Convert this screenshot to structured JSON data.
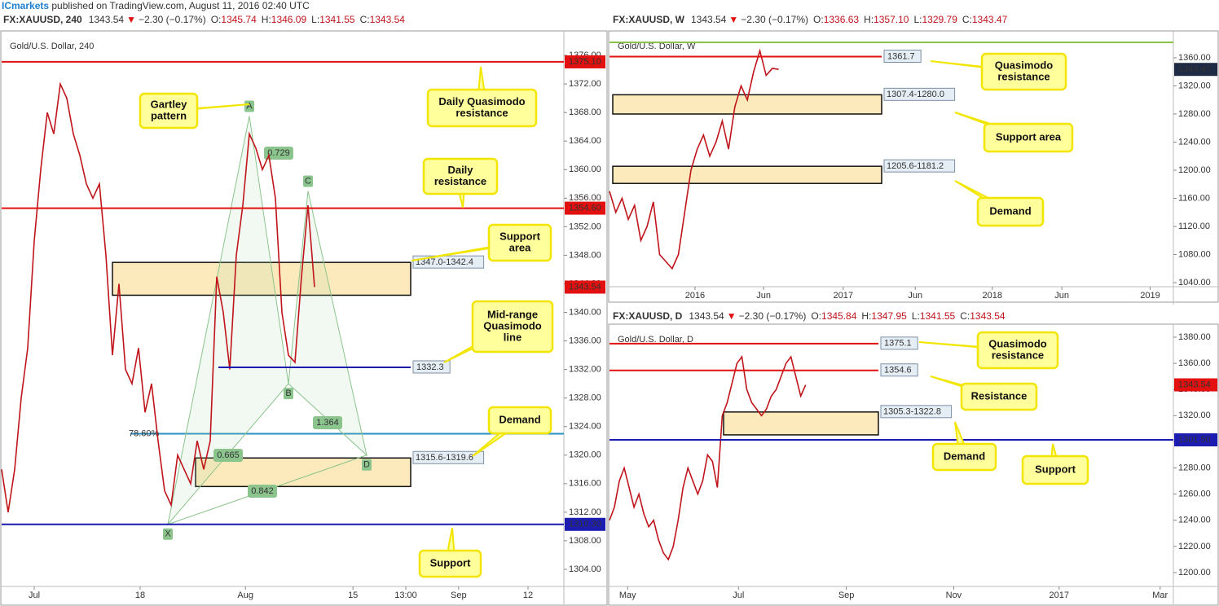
{
  "header": {
    "brand": "ICmarkets",
    "text": " published on TradingView.com, August 11, 2016 02:40 UTC"
  },
  "chart_data": [
    {
      "type": "line",
      "symbol": "FX:XAUUSD, 240",
      "last": "1343.54",
      "arrow": "▼",
      "change": "−2.30 (−0.17%)",
      "ohlc": [
        {
          "label": "O:",
          "value": "1345.74"
        },
        {
          "label": "H:",
          "value": "1346.09"
        },
        {
          "label": "L:",
          "value": "1341.55"
        },
        {
          "label": "C:",
          "value": "1343.54"
        }
      ],
      "title": "Gold/U.S. Dollar, 240",
      "color": "#c0141b",
      "values": [
        1318,
        1312,
        1318,
        1328,
        1335,
        1350,
        1360,
        1368,
        1365,
        1372,
        1370,
        1365,
        1362,
        1358,
        1356,
        1358,
        1348,
        1334,
        1344,
        1332,
        1330,
        1335,
        1326,
        1330,
        1322,
        1315,
        1313,
        1320,
        1318,
        1316,
        1322,
        1318,
        1322,
        1345,
        1340,
        1332,
        1348,
        1355,
        1365,
        1363,
        1360,
        1362,
        1356,
        1340,
        1334,
        1333,
        1345,
        1355,
        1343.54
      ],
      "xlim": [
        0,
        86.25
      ],
      "xticks": [
        {
          "value": 5,
          "label": "Jul"
        },
        {
          "value": 21.25,
          "label": "18"
        },
        {
          "value": 37.4,
          "label": "Aug"
        },
        {
          "value": 53.9,
          "label": "15"
        },
        {
          "value": 62,
          "label": "13:00"
        },
        {
          "value": 70.1,
          "label": "Sep"
        },
        {
          "value": 80.75,
          "label": "12"
        }
      ],
      "ylim": [
        1301.6,
        1379.2
      ],
      "yticks": [
        {
          "value": 1304,
          "label": "1304.00"
        },
        {
          "value": 1308,
          "label": "1308.00"
        },
        {
          "value": 1312,
          "label": "1312.00"
        },
        {
          "value": 1316,
          "label": "1316.00"
        },
        {
          "value": 1320,
          "label": "1320.00"
        },
        {
          "value": 1324,
          "label": "1324.00"
        },
        {
          "value": 1328,
          "label": "1328.00"
        },
        {
          "value": 1332,
          "label": "1332.00"
        },
        {
          "value": 1336,
          "label": "1336.00"
        },
        {
          "value": 1340,
          "label": "1340.00"
        },
        {
          "value": 1344,
          "label": "1344.00"
        },
        {
          "value": 1348,
          "label": "1348.00"
        },
        {
          "value": 1352,
          "label": "1352.00"
        },
        {
          "value": 1356,
          "label": "1356.00"
        },
        {
          "value": 1360,
          "label": "1360.00"
        },
        {
          "value": 1364,
          "label": "1364.00"
        },
        {
          "value": 1368,
          "label": "1368.00"
        },
        {
          "value": 1372,
          "label": "1372.00"
        },
        {
          "value": 1376,
          "label": "1376.00"
        }
      ],
      "levels": [
        {
          "value": 1375.1,
          "label": "1375.10",
          "color": "#e31010"
        },
        {
          "value": 1354.6,
          "label": "1354.60",
          "color": "#e31010"
        },
        {
          "value": 1332.3,
          "label": "1332.3",
          "color": "#1c1cb0"
        },
        {
          "value": 1310.3,
          "label": "1310.30",
          "color": "#1c1cb0"
        }
      ],
      "fib": {
        "value": 1323,
        "label": "78.60%",
        "color": "#2a8fc0"
      },
      "zones": [
        {
          "low": 1342.4,
          "high": 1347.0,
          "label": "1347.0-1342.4"
        },
        {
          "low": 1315.6,
          "high": 1319.6,
          "label": "1315.6-1319.6"
        }
      ],
      "price_label": {
        "value": 1343.54,
        "label": "1343.54",
        "color": "#e31010"
      },
      "pattern": [
        {
          "label": "X",
          "x": 25.5,
          "y": 1310.3
        },
        {
          "label": "A",
          "x": 38,
          "y": 1367.5
        },
        {
          "label": "B",
          "x": 44,
          "y": 1330
        },
        {
          "label": "C",
          "x": 47,
          "y": 1357
        },
        {
          "label": "D",
          "x": 56,
          "y": 1320
        }
      ],
      "ratios": [
        0.729,
        1.364,
        0.665,
        0.842
      ],
      "annotations": [
        {
          "lines": [
            "Gartley",
            "pattern"
          ]
        },
        {
          "lines": [
            "Daily Quasimodo",
            "resistance"
          ]
        },
        {
          "lines": [
            "Daily",
            "resistance"
          ]
        },
        {
          "lines": [
            "Support",
            "area"
          ]
        },
        {
          "lines": [
            "Mid-range",
            "Quasimodo",
            "line"
          ]
        },
        {
          "lines": [
            "Demand"
          ]
        },
        {
          "lines": [
            "Support"
          ]
        }
      ]
    },
    {
      "type": "line",
      "symbol": "FX:XAUUSD, W",
      "last": "1343.54",
      "arrow": "▼",
      "change": "−2.30 (−0.17%)",
      "ohlc": [
        {
          "label": "O:",
          "value": "1336.63"
        },
        {
          "label": "H:",
          "value": "1357.10"
        },
        {
          "label": "L:",
          "value": "1329.79"
        },
        {
          "label": "C:",
          "value": "1343.47"
        }
      ],
      "title": "Gold/U.S. Dollar, W",
      "color": "#c0141b",
      "values": [
        1170,
        1140,
        1160,
        1130,
        1150,
        1100,
        1120,
        1155,
        1080,
        1070,
        1060,
        1080,
        1140,
        1200,
        1230,
        1250,
        1220,
        1240,
        1270,
        1230,
        1290,
        1320,
        1300,
        1340,
        1370,
        1335,
        1345,
        1343.47
      ],
      "xlim": [
        0,
        90
      ],
      "xticks": [
        {
          "value": 13.65,
          "label": "2016"
        },
        {
          "value": 24.6,
          "label": "Jun"
        },
        {
          "value": 37.3,
          "label": "2017"
        },
        {
          "value": 48.8,
          "label": "Jun"
        },
        {
          "value": 61.1,
          "label": "2018"
        },
        {
          "value": 72.2,
          "label": "Jun"
        },
        {
          "value": 86.3,
          "label": "2019"
        }
      ],
      "ylim": [
        1034.2,
        1395.9
      ],
      "yticks": [
        {
          "value": 1040,
          "label": "1040.00"
        },
        {
          "value": 1080,
          "label": "1080.00"
        },
        {
          "value": 1120,
          "label": "1120.00"
        },
        {
          "value": 1160,
          "label": "1160.00"
        },
        {
          "value": 1200,
          "label": "1200.00"
        },
        {
          "value": 1240,
          "label": "1240.00"
        },
        {
          "value": 1280,
          "label": "1280.00"
        },
        {
          "value": 1320,
          "label": "1320.00"
        },
        {
          "value": 1360,
          "label": "1360.00"
        }
      ],
      "levels": [
        {
          "value": 1361.7,
          "label": "1361.7",
          "color": "#e31010"
        },
        {
          "value": 1382,
          "color": "#8bc34a"
        }
      ],
      "zones": [
        {
          "low": 1280.0,
          "high": 1307.4,
          "label": "1307.4-1280.0"
        },
        {
          "low": 1181.2,
          "high": 1205.6,
          "label": "1205.6-1181.2"
        }
      ],
      "price_label": {
        "value": 1343.47,
        "label": "1343.47",
        "color": "#1f2a44"
      },
      "annotations": [
        {
          "lines": [
            "Quasimodo",
            "resistance"
          ]
        },
        {
          "lines": [
            "Support area"
          ]
        },
        {
          "lines": [
            "Demand"
          ]
        }
      ]
    },
    {
      "type": "line",
      "symbol": "FX:XAUUSD, D",
      "last": "1343.54",
      "arrow": "▼",
      "change": "−2.30 (−0.17%)",
      "ohlc": [
        {
          "label": "O:",
          "value": "1345.84"
        },
        {
          "label": "H:",
          "value": "1347.95"
        },
        {
          "label": "L:",
          "value": "1341.55"
        },
        {
          "label": "C:",
          "value": "1343.54"
        }
      ],
      "title": "Gold/U.S. Dollar, D",
      "color": "#c0141b",
      "values": [
        1240,
        1250,
        1270,
        1280,
        1265,
        1250,
        1260,
        1245,
        1235,
        1240,
        1225,
        1215,
        1210,
        1220,
        1240,
        1265,
        1280,
        1270,
        1260,
        1270,
        1290,
        1285,
        1265,
        1320,
        1330,
        1345,
        1360,
        1365,
        1340,
        1330,
        1325,
        1320,
        1325,
        1335,
        1340,
        1350,
        1360,
        1365,
        1350,
        1335,
        1343.54
      ],
      "xlim": [
        0,
        115
      ],
      "xticks": [
        {
          "value": 3.7,
          "label": "May"
        },
        {
          "value": 26.3,
          "label": "Jul"
        },
        {
          "value": 48.3,
          "label": "Sep"
        },
        {
          "value": 70.2,
          "label": "Nov"
        },
        {
          "value": 91.7,
          "label": "2017"
        },
        {
          "value": 112.3,
          "label": "Mar"
        }
      ],
      "ylim": [
        1189.4,
        1388.7
      ],
      "yticks": [
        {
          "value": 1200,
          "label": "1200.00"
        },
        {
          "value": 1220,
          "label": "1220.00"
        },
        {
          "value": 1240,
          "label": "1240.00"
        },
        {
          "value": 1260,
          "label": "1260.00"
        },
        {
          "value": 1280,
          "label": "1280.00"
        },
        {
          "value": 1300,
          "label": "1300.00"
        },
        {
          "value": 1320,
          "label": "1320.00"
        },
        {
          "value": 1340,
          "label": "1340.00"
        },
        {
          "value": 1360,
          "label": "1360.00"
        },
        {
          "value": 1380,
          "label": "1380.00"
        }
      ],
      "levels": [
        {
          "value": 1375.1,
          "label": "1375.1",
          "color": "#e31010"
        },
        {
          "value": 1354.6,
          "label": "1354.6",
          "color": "#e31010"
        },
        {
          "value": 1301.5,
          "label": "1301.50",
          "color": "#1c1cb0"
        }
      ],
      "zones": [
        {
          "low": 1305.3,
          "high": 1322.8,
          "label": "1305.3-1322.8"
        }
      ],
      "price_label": {
        "value": 1343.54,
        "label": "1343.54",
        "color": "#e31010"
      },
      "annotations": [
        {
          "lines": [
            "Quasimodo",
            "resistance"
          ]
        },
        {
          "lines": [
            "Resistance"
          ]
        },
        {
          "lines": [
            "Demand"
          ]
        },
        {
          "lines": [
            "Support"
          ]
        }
      ]
    }
  ]
}
